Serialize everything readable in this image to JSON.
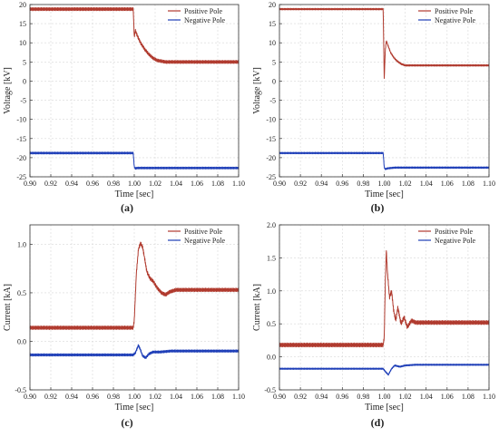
{
  "chart_data": [
    {
      "type": "line",
      "panel_label": "(a)",
      "xlabel": "Time [sec]",
      "ylabel": "Voltage [kV]",
      "xlim": [
        0.9,
        1.1
      ],
      "ylim": [
        -25,
        20
      ],
      "xticks": [
        "0.90",
        "0.92",
        "0.94",
        "0.96",
        "0.98",
        "1.00",
        "1.02",
        "1.04",
        "1.06",
        "1.08",
        "1.10"
      ],
      "yticks": [
        "-25",
        "-20",
        "-15",
        "-10",
        "-5",
        "0",
        "5",
        "10",
        "15",
        "20"
      ],
      "grid": true,
      "legend_position": "top-right",
      "series": [
        {
          "name": "Positive Pole",
          "color": "#b03a2e",
          "x": [
            0.9,
            0.95,
            0.999,
            1.0,
            1.001,
            1.003,
            1.006,
            1.01,
            1.014,
            1.018,
            1.022,
            1.026,
            1.03,
            1.04,
            1.06,
            1.08,
            1.1
          ],
          "y": [
            18.8,
            18.8,
            18.8,
            11.5,
            13.2,
            11.8,
            10.0,
            8.3,
            7.0,
            6.0,
            5.4,
            5.2,
            5.0,
            5.0,
            5.0,
            5.0,
            5.0
          ],
          "ripple": 0.4
        },
        {
          "name": "Negative Pole",
          "color": "#1f3fb8",
          "x": [
            0.9,
            0.95,
            0.999,
            1.0,
            1.001,
            1.003,
            1.01,
            1.04,
            1.1
          ],
          "y": [
            -18.8,
            -18.8,
            -18.8,
            -22.4,
            -22.8,
            -22.7,
            -22.7,
            -22.7,
            -22.7
          ],
          "ripple": 0.25
        }
      ]
    },
    {
      "type": "line",
      "panel_label": "(b)",
      "xlabel": "Time [sec]",
      "ylabel": "Voltage [kV]",
      "xlim": [
        0.9,
        1.1
      ],
      "ylim": [
        -25,
        20
      ],
      "xticks": [
        "0.90",
        "0.92",
        "0.94",
        "0.96",
        "0.98",
        "1.00",
        "1.02",
        "1.04",
        "1.06",
        "1.08",
        "1.10"
      ],
      "yticks": [
        "-25",
        "-20",
        "-15",
        "-10",
        "-5",
        "0",
        "5",
        "10",
        "15",
        "20"
      ],
      "grid": true,
      "legend_position": "top-right",
      "series": [
        {
          "name": "Positive Pole",
          "color": "#b03a2e",
          "x": [
            0.9,
            0.95,
            0.999,
            1.0,
            1.001,
            1.002,
            1.004,
            1.006,
            1.009,
            1.012,
            1.016,
            1.02,
            1.03,
            1.06,
            1.1
          ],
          "y": [
            18.8,
            18.8,
            18.8,
            0.5,
            8.0,
            10.5,
            9.0,
            7.5,
            6.2,
            5.3,
            4.5,
            4.1,
            4.1,
            4.1,
            4.1
          ],
          "ripple": 0.2
        },
        {
          "name": "Negative Pole",
          "color": "#1f3fb8",
          "x": [
            0.9,
            0.95,
            0.999,
            1.0,
            1.001,
            1.003,
            1.01,
            1.04,
            1.1
          ],
          "y": [
            -18.8,
            -18.8,
            -18.8,
            -22.5,
            -23.0,
            -22.8,
            -22.6,
            -22.6,
            -22.6
          ],
          "ripple": 0.2
        }
      ]
    },
    {
      "type": "line",
      "panel_label": "(c)",
      "xlabel": "Time [sec]",
      "ylabel": "Current [kA]",
      "xlim": [
        0.9,
        1.1
      ],
      "ylim": [
        -0.5,
        1.2
      ],
      "xticks": [
        "0.90",
        "0.92",
        "0.94",
        "0.96",
        "0.98",
        "1.00",
        "1.02",
        "1.04",
        "1.06",
        "1.08",
        "1.10"
      ],
      "yticks": [
        "-0.5",
        "0.0",
        "0.5",
        "1.0"
      ],
      "ytick_values": [
        -0.5,
        0.0,
        0.5,
        1.0
      ],
      "grid": true,
      "legend_position": "top-right",
      "series": [
        {
          "name": "Positive Pole",
          "color": "#b03a2e",
          "x": [
            0.9,
            0.95,
            0.999,
            1.0,
            1.002,
            1.004,
            1.006,
            1.008,
            1.01,
            1.012,
            1.015,
            1.018,
            1.022,
            1.026,
            1.03,
            1.034,
            1.04,
            1.06,
            1.1
          ],
          "y": [
            0.14,
            0.14,
            0.14,
            0.22,
            0.7,
            0.95,
            1.01,
            0.97,
            0.85,
            0.72,
            0.65,
            0.62,
            0.55,
            0.5,
            0.48,
            0.51,
            0.53,
            0.53,
            0.53
          ],
          "ripple": 0.018
        },
        {
          "name": "Negative Pole",
          "color": "#1f3fb8",
          "x": [
            0.9,
            0.95,
            0.999,
            1.001,
            1.004,
            1.006,
            1.008,
            1.011,
            1.014,
            1.018,
            1.025,
            1.035,
            1.06,
            1.1
          ],
          "y": [
            -0.14,
            -0.14,
            -0.14,
            -0.12,
            -0.04,
            -0.09,
            -0.15,
            -0.17,
            -0.13,
            -0.11,
            -0.11,
            -0.1,
            -0.1,
            -0.1
          ],
          "ripple": 0.012
        }
      ]
    },
    {
      "type": "line",
      "panel_label": "(d)",
      "xlabel": "Time [sec]",
      "ylabel": "Current [kA]",
      "xlim": [
        0.9,
        1.1
      ],
      "ylim": [
        -0.5,
        2.0
      ],
      "xticks": [
        "0.90",
        "0.92",
        "0.94",
        "0.96",
        "0.98",
        "1.00",
        "1.02",
        "1.04",
        "1.06",
        "1.08",
        "1.10"
      ],
      "yticks": [
        "-0.5",
        "0.0",
        "0.5",
        "1.0",
        "1.5",
        "2.0"
      ],
      "ytick_values": [
        -0.5,
        0.0,
        0.5,
        1.0,
        1.5,
        2.0
      ],
      "grid": true,
      "legend_position": "top-right",
      "series": [
        {
          "name": "Positive Pole",
          "color": "#b03a2e",
          "x": [
            0.9,
            0.95,
            0.999,
            1.0,
            1.001,
            1.002,
            1.003,
            1.005,
            1.007,
            1.009,
            1.011,
            1.013,
            1.016,
            1.019,
            1.022,
            1.026,
            1.03,
            1.06,
            1.1
          ],
          "y": [
            0.18,
            0.18,
            0.18,
            0.3,
            1.1,
            1.62,
            1.3,
            0.9,
            1.0,
            0.7,
            0.55,
            0.75,
            0.5,
            0.6,
            0.45,
            0.55,
            0.52,
            0.52,
            0.52
          ],
          "ripple": 0.03
        },
        {
          "name": "Negative Pole",
          "color": "#1f3fb8",
          "x": [
            0.9,
            0.95,
            0.999,
            1.0,
            1.002,
            1.004,
            1.007,
            1.01,
            1.015,
            1.02,
            1.03,
            1.06,
            1.1
          ],
          "y": [
            -0.18,
            -0.18,
            -0.18,
            -0.2,
            -0.24,
            -0.27,
            -0.18,
            -0.13,
            -0.15,
            -0.13,
            -0.12,
            -0.12,
            -0.12
          ],
          "ripple": 0.01
        }
      ]
    }
  ]
}
